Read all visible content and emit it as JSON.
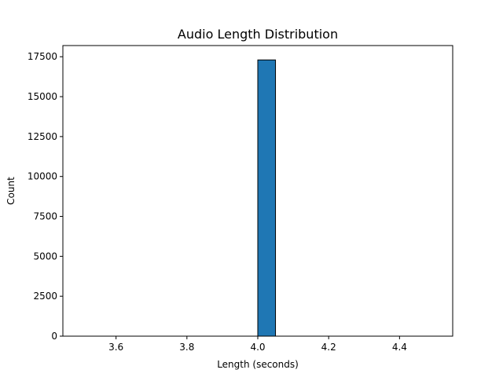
{
  "chart_data": {
    "type": "bar",
    "title": "Audio Length Distribution",
    "xlabel": "Length (seconds)",
    "ylabel": "Count",
    "xlim": [
      3.45,
      4.55
    ],
    "ylim": [
      0,
      18200
    ],
    "x_ticks": [
      3.6,
      3.8,
      4.0,
      4.2,
      4.4
    ],
    "x_tick_labels": [
      "3.6",
      "3.8",
      "4.0",
      "4.2",
      "4.4"
    ],
    "y_ticks": [
      0,
      2500,
      5000,
      7500,
      10000,
      12500,
      15000,
      17500
    ],
    "y_tick_labels": [
      "0",
      "2500",
      "5000",
      "7500",
      "10000",
      "12500",
      "15000",
      "17500"
    ],
    "bins": {
      "edges": [
        3.5,
        3.55,
        3.6,
        3.65,
        3.7,
        3.75,
        3.8,
        3.85,
        3.9,
        3.95,
        4.0,
        4.05,
        4.1,
        4.15,
        4.2,
        4.25,
        4.3,
        4.35,
        4.4,
        4.45,
        4.5
      ],
      "counts": [
        0,
        0,
        0,
        0,
        0,
        0,
        0,
        0,
        0,
        0,
        17300,
        0,
        0,
        0,
        0,
        0,
        0,
        0,
        0,
        0
      ]
    },
    "bar_color": "#1f77b4",
    "bar_edge_color": "#000000",
    "grid": false,
    "legend": false
  }
}
